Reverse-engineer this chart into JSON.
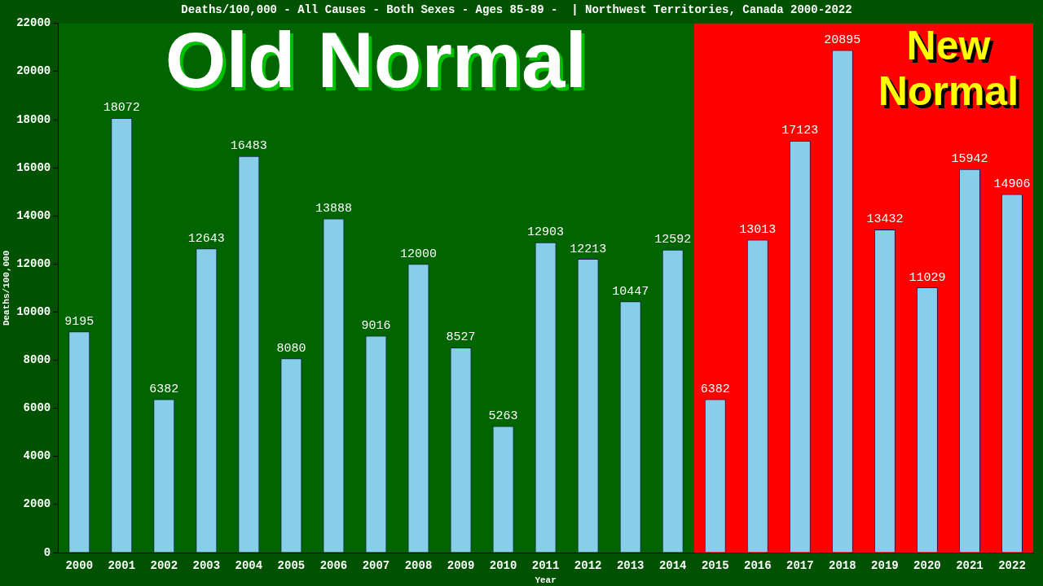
{
  "chart_data": {
    "type": "bar",
    "title": "Deaths/100,000 - All Causes - Both Sexes - Ages 85-89 -  | Northwest Territories, Canada 2000-2022",
    "xlabel": "Year",
    "ylabel": "Deaths/100,000",
    "categories": [
      "2000",
      "2001",
      "2002",
      "2003",
      "2004",
      "2005",
      "2006",
      "2007",
      "2008",
      "2009",
      "2010",
      "2011",
      "2012",
      "2013",
      "2014",
      "2015",
      "2016",
      "2017",
      "2018",
      "2019",
      "2020",
      "2021",
      "2022"
    ],
    "values": [
      9195,
      18072,
      6382,
      12643,
      16483,
      8080,
      13888,
      9016,
      12000,
      8527,
      5263,
      12903,
      12213,
      10447,
      12592,
      6382,
      13013,
      17123,
      20895,
      13432,
      11029,
      15942,
      14906
    ],
    "color": "#87ceeb",
    "data_labels": true,
    "grid": false,
    "legend": false,
    "ylim": [
      0,
      22000
    ],
    "yticks": [
      0,
      2000,
      4000,
      6000,
      8000,
      10000,
      12000,
      14000,
      16000,
      18000,
      20000,
      22000
    ],
    "bands": [
      {
        "axis": "x",
        "from": "2000",
        "to": "2014",
        "label": "Old Normal",
        "color": "#006400"
      },
      {
        "axis": "x",
        "from": "2015",
        "to": "2022",
        "label": "New Normal",
        "color": "#ff0000"
      }
    ]
  }
}
